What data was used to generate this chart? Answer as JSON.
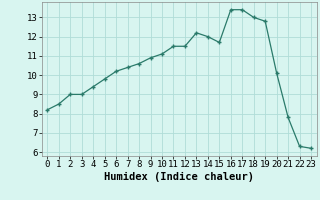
{
  "x": [
    0,
    1,
    2,
    3,
    4,
    5,
    6,
    7,
    8,
    9,
    10,
    11,
    12,
    13,
    14,
    15,
    16,
    17,
    18,
    19,
    20,
    21,
    22,
    23
  ],
  "y": [
    8.2,
    8.5,
    9.0,
    9.0,
    9.4,
    9.8,
    10.2,
    10.4,
    10.6,
    10.9,
    11.1,
    11.5,
    11.5,
    12.2,
    12.0,
    11.7,
    13.4,
    13.4,
    13.0,
    12.8,
    10.1,
    7.8,
    6.3,
    6.2
  ],
  "title": "",
  "xlabel": "Humidex (Indice chaleur)",
  "ylabel": "",
  "xlim": [
    -0.5,
    23.5
  ],
  "ylim": [
    5.8,
    13.8
  ],
  "yticks": [
    6,
    7,
    8,
    9,
    10,
    11,
    12,
    13
  ],
  "xticks": [
    0,
    1,
    2,
    3,
    4,
    5,
    6,
    7,
    8,
    9,
    10,
    11,
    12,
    13,
    14,
    15,
    16,
    17,
    18,
    19,
    20,
    21,
    22,
    23
  ],
  "line_color": "#2a7a6a",
  "marker_color": "#2a7a6a",
  "bg_color": "#d8f5f0",
  "grid_color": "#b0ddd8",
  "xlabel_fontsize": 7.5,
  "tick_fontsize": 6.5
}
